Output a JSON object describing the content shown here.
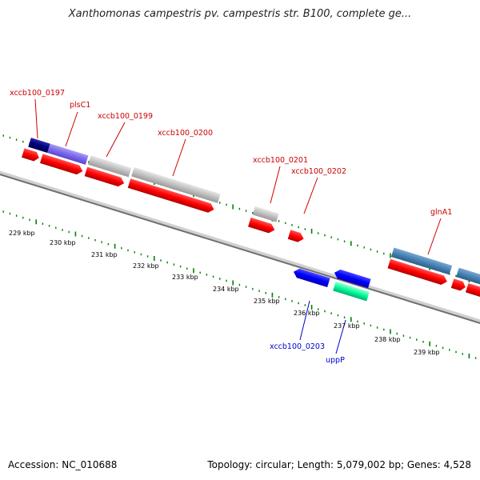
{
  "title": "Xanthomonas campestris pv. campestris str. B100, complete ge...",
  "footer": {
    "accession": "Accession: NC_010688",
    "topology": "Topology: circular; Length: 5,079,002 bp; Genes: 4,528"
  },
  "kbp_ticks": [
    "229 kbp",
    "230 kbp",
    "231 kbp",
    "232 kbp",
    "233 kbp",
    "234 kbp",
    "235 kbp",
    "236 kbp",
    "237 kbp",
    "238 kbp",
    "239 kbp"
  ],
  "gene_labels_forward": [
    "xccb100_0197",
    "plsC1",
    "xccb100_0199",
    "xccb100_0200",
    "xccb100_0201",
    "xccb100_0202",
    "glnA1"
  ],
  "gene_labels_reverse": [
    "xccb100_0203",
    "uppP"
  ],
  "colors": {
    "cds": "#ff0000",
    "label_forward": "#cc0000",
    "label_reverse": "#0000cc",
    "tick": "#008000",
    "backbone": "#808080",
    "feature_purple": "#7b68ee",
    "feature_navy": "#000080",
    "feature_gray": "#c0c0c0",
    "feature_steelblue": "#4682b4",
    "feature_blue": "#0000ff",
    "feature_aquamarine": "#00ff99"
  }
}
